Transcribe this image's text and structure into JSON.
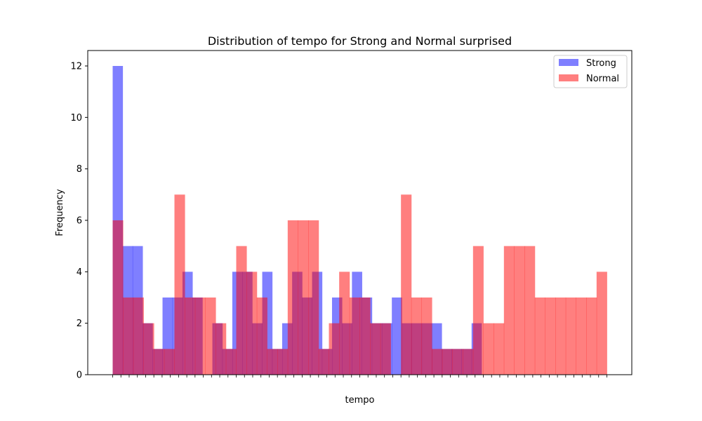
{
  "chart_data": {
    "type": "bar",
    "title": "Distribution of tempo for Strong and Normal surprised",
    "xlabel": "tempo",
    "ylabel": "Frequency",
    "ylim": [
      0,
      12.6
    ],
    "yticks": [
      0,
      2,
      4,
      6,
      8,
      10,
      12
    ],
    "legend_position": "top-right",
    "grid": false,
    "overlap": true,
    "opacity": 0.5,
    "series": [
      {
        "name": "Strong",
        "color": "#0000ff",
        "values": [
          12,
          5,
          5,
          2,
          1,
          3,
          3,
          4,
          3,
          0,
          2,
          1,
          4,
          4,
          2,
          4,
          1,
          2,
          4,
          3,
          4,
          1,
          3,
          2,
          4,
          3,
          2,
          2,
          3,
          2,
          2,
          2,
          2,
          1,
          1,
          1,
          2
        ]
      },
      {
        "name": "Normal",
        "color": "#ff0000",
        "values": [
          6,
          3,
          3,
          2,
          1,
          1,
          7,
          3,
          3,
          3,
          2,
          1,
          5,
          4,
          3,
          1,
          1,
          6,
          6,
          6,
          1,
          2,
          4,
          3,
          3,
          2,
          2,
          0,
          7,
          3,
          3,
          1,
          1,
          1,
          1,
          5,
          2,
          2,
          5,
          5,
          5,
          3,
          3,
          3,
          3,
          3,
          3,
          4
        ]
      }
    ]
  }
}
